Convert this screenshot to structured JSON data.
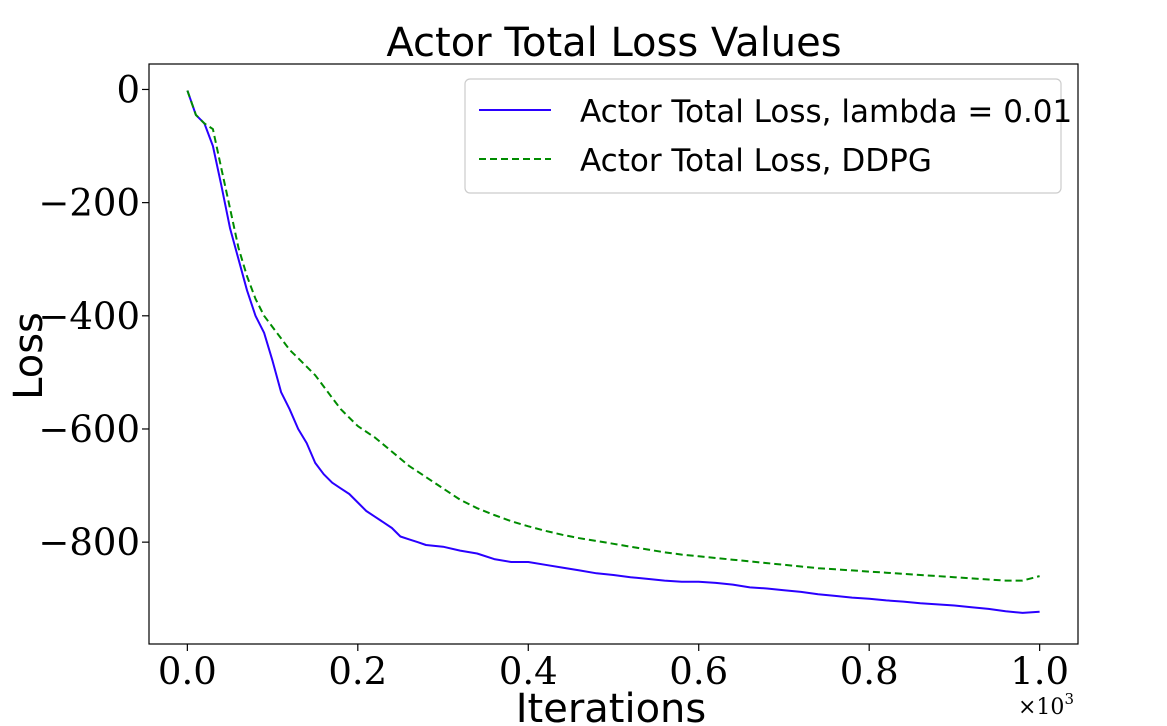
{
  "chart_data": {
    "type": "line",
    "title": "Actor Total Loss Values",
    "xlabel": "Iterations",
    "ylabel": "Loss",
    "x_multiplier": "×10",
    "x_multiplier_exp": "3",
    "xlim": [
      -0.045,
      1.045
    ],
    "ylim": [
      -980,
      45
    ],
    "xticks": [
      0.0,
      0.2,
      0.4,
      0.6,
      0.8,
      1.0
    ],
    "xtick_labels": [
      "0.0",
      "0.2",
      "0.4",
      "0.6",
      "0.8",
      "1.0"
    ],
    "yticks": [
      0,
      -200,
      -400,
      -600,
      -800
    ],
    "ytick_labels": [
      "0",
      "−200",
      "−400",
      "−600",
      "−800"
    ],
    "grid": false,
    "legend_position": "top-right",
    "series": [
      {
        "name": "Actor Total Loss, lambda = 0.01",
        "color": "#2a00ff",
        "style": "solid",
        "x": [
          0.0,
          0.01,
          0.02,
          0.03,
          0.04,
          0.05,
          0.06,
          0.07,
          0.08,
          0.09,
          0.1,
          0.11,
          0.12,
          0.13,
          0.14,
          0.15,
          0.16,
          0.17,
          0.18,
          0.19,
          0.2,
          0.21,
          0.22,
          0.23,
          0.24,
          0.25,
          0.26,
          0.27,
          0.28,
          0.3,
          0.32,
          0.34,
          0.36,
          0.38,
          0.4,
          0.42,
          0.44,
          0.46,
          0.48,
          0.5,
          0.52,
          0.54,
          0.56,
          0.58,
          0.6,
          0.62,
          0.64,
          0.66,
          0.68,
          0.7,
          0.72,
          0.74,
          0.76,
          0.78,
          0.8,
          0.82,
          0.84,
          0.86,
          0.88,
          0.9,
          0.92,
          0.94,
          0.96,
          0.98,
          1.0
        ],
        "y": [
          -2,
          -45,
          -60,
          -100,
          -170,
          -245,
          -300,
          -355,
          -400,
          -430,
          -480,
          -535,
          -565,
          -600,
          -625,
          -660,
          -680,
          -695,
          -705,
          -715,
          -730,
          -745,
          -755,
          -765,
          -775,
          -790,
          -795,
          -800,
          -805,
          -808,
          -815,
          -820,
          -830,
          -835,
          -835,
          -840,
          -845,
          -850,
          -855,
          -858,
          -862,
          -865,
          -868,
          -870,
          -870,
          -872,
          -875,
          -880,
          -882,
          -885,
          -888,
          -892,
          -895,
          -898,
          -900,
          -903,
          -905,
          -908,
          -910,
          -912,
          -915,
          -918,
          -922,
          -925,
          -923
        ]
      },
      {
        "name": "Actor Total Loss, DDPG",
        "color": "#008c00",
        "style": "dashed",
        "x": [
          0.0,
          0.01,
          0.02,
          0.03,
          0.04,
          0.05,
          0.06,
          0.07,
          0.08,
          0.09,
          0.1,
          0.11,
          0.12,
          0.13,
          0.14,
          0.15,
          0.16,
          0.17,
          0.18,
          0.19,
          0.2,
          0.22,
          0.24,
          0.26,
          0.28,
          0.3,
          0.32,
          0.34,
          0.36,
          0.38,
          0.4,
          0.42,
          0.44,
          0.46,
          0.48,
          0.5,
          0.52,
          0.54,
          0.56,
          0.58,
          0.6,
          0.62,
          0.64,
          0.66,
          0.68,
          0.7,
          0.72,
          0.74,
          0.76,
          0.78,
          0.8,
          0.82,
          0.84,
          0.86,
          0.88,
          0.9,
          0.92,
          0.94,
          0.96,
          0.98,
          1.0
        ],
        "y": [
          -2,
          -45,
          -60,
          -70,
          -140,
          -210,
          -280,
          -330,
          -370,
          -400,
          -420,
          -440,
          -460,
          -475,
          -490,
          -505,
          -525,
          -545,
          -565,
          -580,
          -595,
          -615,
          -640,
          -665,
          -685,
          -705,
          -725,
          -740,
          -752,
          -763,
          -772,
          -780,
          -787,
          -793,
          -798,
          -803,
          -808,
          -813,
          -818,
          -822,
          -825,
          -828,
          -831,
          -834,
          -837,
          -840,
          -843,
          -846,
          -848,
          -850,
          -852,
          -854,
          -856,
          -858,
          -860,
          -862,
          -864,
          -866,
          -868,
          -868,
          -860
        ]
      }
    ]
  }
}
